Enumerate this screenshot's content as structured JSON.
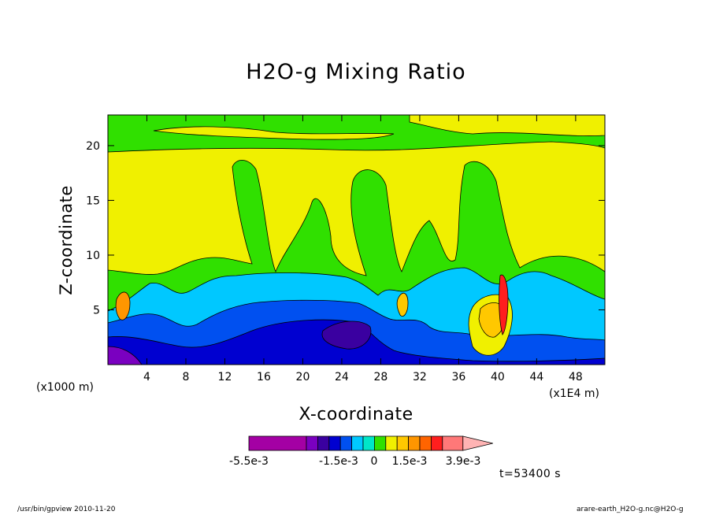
{
  "chart_data": {
    "type": "heatmap",
    "title": "H2O-g Mixing Ratio",
    "xlabel": "X-coordinate",
    "ylabel": "Z-coordinate",
    "x_unit": "(x1000 m)",
    "x_multiplier": "(x1E4 m)",
    "xlim": [
      0,
      51
    ],
    "ylim": [
      0,
      22.8
    ],
    "x_ticks": [
      4,
      8,
      12,
      16,
      20,
      24,
      28,
      32,
      36,
      40,
      44,
      48
    ],
    "y_ticks": [
      5,
      10,
      15,
      20
    ],
    "colorbar": {
      "colors": [
        "#a400a4",
        "#7a00c0",
        "#3a00a0",
        "#0000d0",
        "#0050f0",
        "#00c8ff",
        "#00e6c8",
        "#30e000",
        "#f0f000",
        "#ffc800",
        "#ff9600",
        "#ff6400",
        "#ff1e1e",
        "#ff7878",
        "#ffb4b4"
      ],
      "labels": [
        "-5.5e-3",
        "-1.5e-3",
        "0",
        "1.5e-3",
        "3.9e-3"
      ]
    },
    "time_label": "t=53400 s"
  },
  "footer": {
    "left": "/usr/bin/gpview  2010-11-20",
    "right": "arare-earth_H2O-g.nc@H2O-g"
  }
}
